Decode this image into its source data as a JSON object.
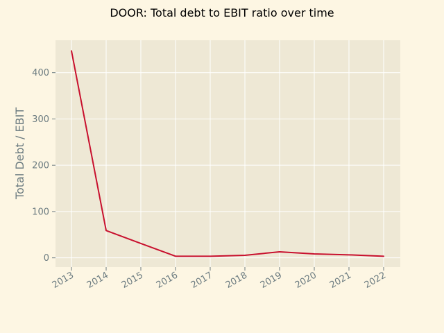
{
  "chart_data": {
    "type": "line",
    "title": "DOOR: Total debt to EBIT ratio over time",
    "xlabel": "",
    "ylabel": "Total Debt / EBIT",
    "x": [
      "2013",
      "2014",
      "2015",
      "2016",
      "2017",
      "2018",
      "2019",
      "2020",
      "2021",
      "2022"
    ],
    "series": [
      {
        "values": [
          447,
          59,
          31,
          3.5,
          3.5,
          5.5,
          13,
          8.5,
          6.5,
          3.5
        ]
      }
    ],
    "yticks": [
      "0",
      "100",
      "200",
      "300",
      "400"
    ],
    "ylim": [
      -20,
      470
    ],
    "grid": true,
    "legend": "none"
  },
  "colors": {
    "figure_background": "#fdf6e3",
    "plot_background": "#eee8d5",
    "grid": "#ffffff",
    "line": "#c8102e",
    "tick_text": "#6b7b80"
  }
}
